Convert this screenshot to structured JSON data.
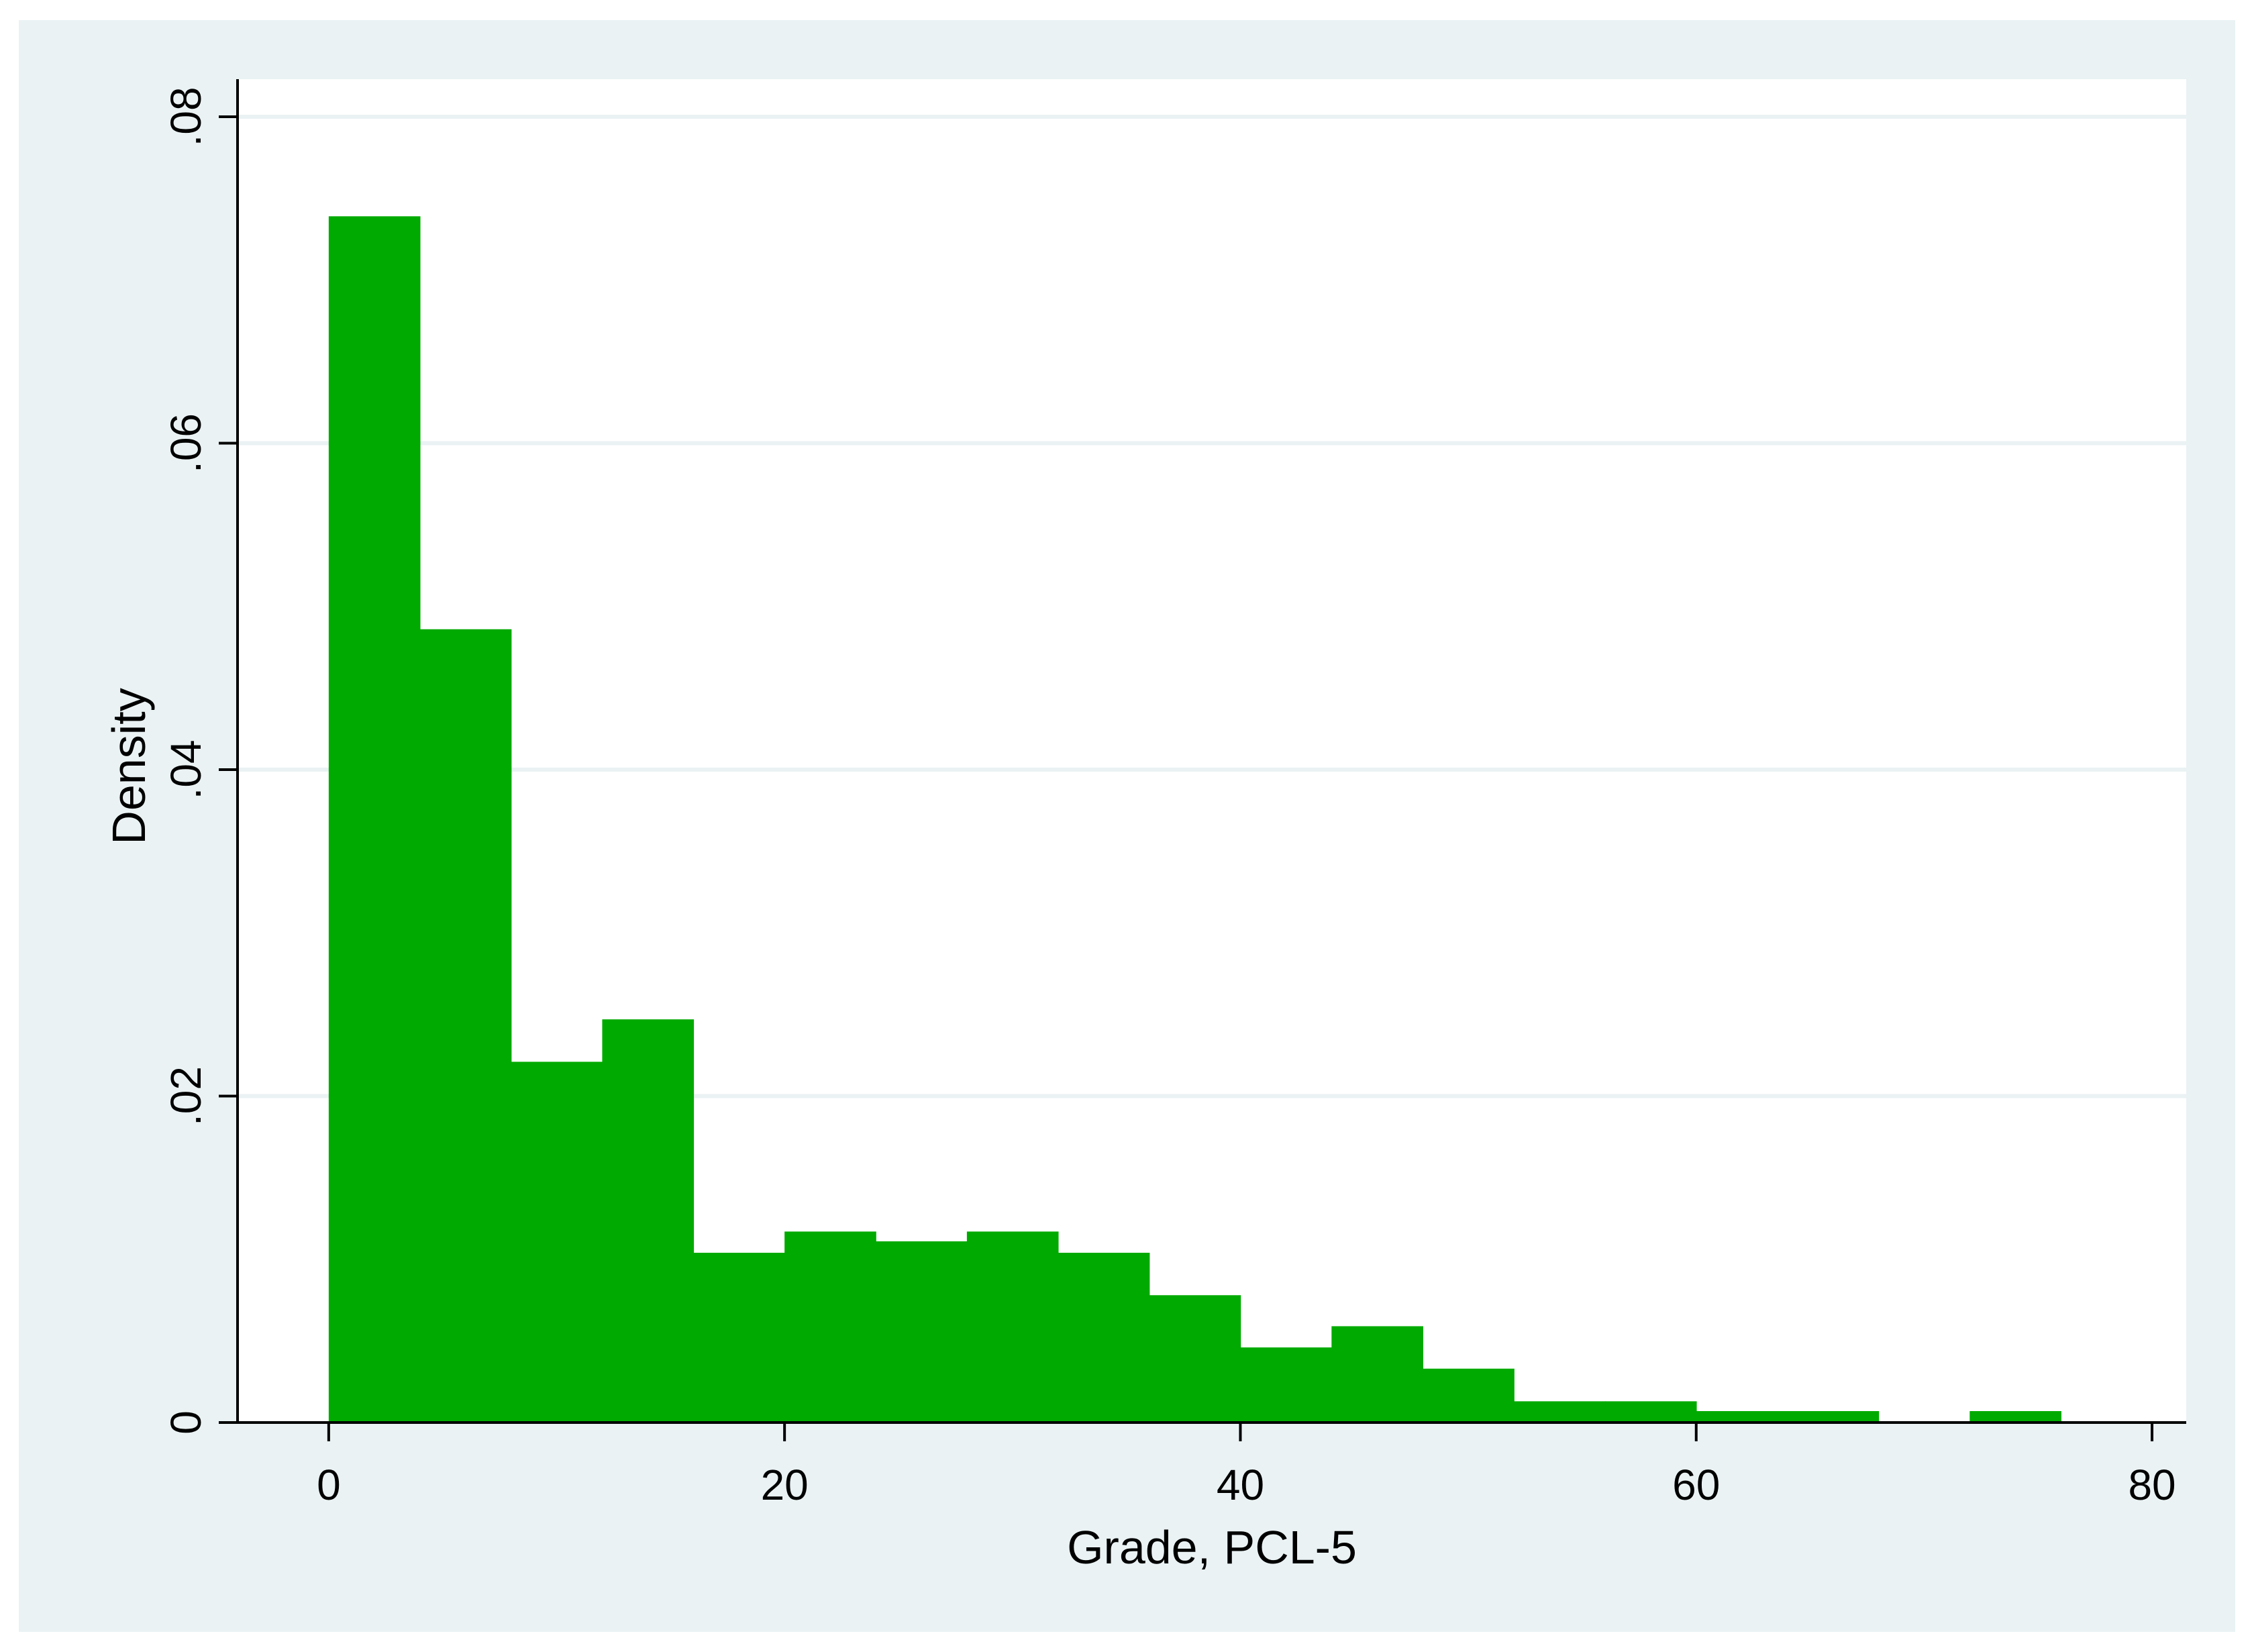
{
  "chart_data": {
    "type": "bar",
    "histogram": true,
    "xlabel": "Grade, PCL-5",
    "ylabel": "Density",
    "xlim": [
      -4,
      81.5
    ],
    "ylim": [
      0,
      0.0823
    ],
    "x_ticks": [
      0,
      20,
      40,
      60,
      80
    ],
    "x_tick_labels": [
      "0",
      "20",
      "40",
      "60",
      "80"
    ],
    "y_ticks": [
      0,
      0.02,
      0.04,
      0.06,
      0.08
    ],
    "y_tick_labels": [
      "0",
      ".02",
      ".04",
      ".06",
      ".08"
    ],
    "grid": "horizontal",
    "bin_width": 4,
    "bins": [
      {
        "x0": 0,
        "x1": 4,
        "density": 0.0739
      },
      {
        "x0": 4,
        "x1": 8,
        "density": 0.0486
      },
      {
        "x0": 8,
        "x1": 12,
        "density": 0.0221
      },
      {
        "x0": 12,
        "x1": 16,
        "density": 0.0247
      },
      {
        "x0": 16,
        "x1": 20,
        "density": 0.0104
      },
      {
        "x0": 20,
        "x1": 24,
        "density": 0.0117
      },
      {
        "x0": 24,
        "x1": 28,
        "density": 0.0111
      },
      {
        "x0": 28,
        "x1": 32,
        "density": 0.0117
      },
      {
        "x0": 32,
        "x1": 36,
        "density": 0.0104
      },
      {
        "x0": 36,
        "x1": 40,
        "density": 0.0078
      },
      {
        "x0": 40,
        "x1": 44,
        "density": 0.0046
      },
      {
        "x0": 44,
        "x1": 48,
        "density": 0.0059
      },
      {
        "x0": 48,
        "x1": 52,
        "density": 0.0033
      },
      {
        "x0": 52,
        "x1": 56,
        "density": 0.0013
      },
      {
        "x0": 56,
        "x1": 60,
        "density": 0.0013
      },
      {
        "x0": 60,
        "x1": 64,
        "density": 0.0007
      },
      {
        "x0": 64,
        "x1": 68,
        "density": 0.0007
      },
      {
        "x0": 68,
        "x1": 72,
        "density": 0
      },
      {
        "x0": 72,
        "x1": 76,
        "density": 0.0007
      }
    ],
    "colors": {
      "bar": "#00aa00",
      "outer_background": "#eaf2f3",
      "plot_background": "#ffffff",
      "grid": "#eaf2f3",
      "axis": "#000000"
    }
  }
}
